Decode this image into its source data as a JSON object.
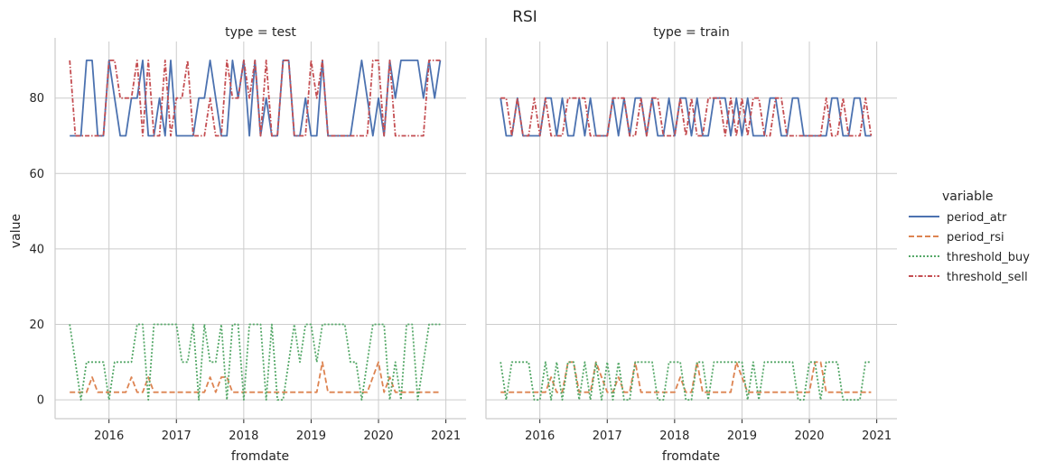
{
  "chart_data": {
    "type": "line",
    "title": "RSI",
    "xlabel": "fromdate",
    "ylabel": "value",
    "ylim": [
      -5,
      95
    ],
    "yticks": [
      0,
      20,
      40,
      60,
      80
    ],
    "xticks": [
      "2016",
      "2017",
      "2018",
      "2019",
      "2020",
      "2021"
    ],
    "grid": true,
    "legend": {
      "title": "variable",
      "position": "right",
      "entries": [
        "period_atr",
        "period_rsi",
        "threshold_buy",
        "threshold_sell"
      ]
    },
    "colors": {
      "period_atr": "#4c72b0",
      "period_rsi": "#dd8452",
      "threshold_buy": "#55a868",
      "threshold_sell": "#c44e52",
      "grid": "#cccccc",
      "axis": "#cccccc"
    },
    "styles": {
      "period_atr": "solid",
      "period_rsi": "dashed",
      "threshold_buy": "dotted",
      "threshold_sell": "dashdot"
    },
    "panels": [
      {
        "title": "type = test",
        "x": [
          "2015-06",
          "2015-07",
          "2015-08",
          "2015-09",
          "2015-10",
          "2015-11",
          "2015-12",
          "2016-01",
          "2016-02",
          "2016-03",
          "2016-04",
          "2016-05",
          "2016-06",
          "2016-07",
          "2016-08",
          "2016-09",
          "2016-10",
          "2016-11",
          "2016-12",
          "2017-01",
          "2017-02",
          "2017-03",
          "2017-04",
          "2017-05",
          "2017-06",
          "2017-07",
          "2017-08",
          "2017-09",
          "2017-10",
          "2017-11",
          "2017-12",
          "2018-01",
          "2018-02",
          "2018-03",
          "2018-04",
          "2018-05",
          "2018-06",
          "2018-07",
          "2018-08",
          "2018-09",
          "2018-10",
          "2018-11",
          "2018-12",
          "2019-01",
          "2019-02",
          "2019-03",
          "2019-04",
          "2019-05",
          "2019-06",
          "2019-07",
          "2019-08",
          "2019-09",
          "2019-10",
          "2019-11",
          "2019-12",
          "2020-01",
          "2020-02",
          "2020-03",
          "2020-04",
          "2020-05",
          "2020-06",
          "2020-07",
          "2020-08",
          "2020-09",
          "2020-10",
          "2020-11",
          "2020-12"
        ],
        "series": [
          {
            "name": "period_atr",
            "values": [
              70,
              70,
              70,
              90,
              90,
              70,
              70,
              90,
              80,
              70,
              70,
              80,
              80,
              90,
              70,
              70,
              80,
              70,
              90,
              70,
              70,
              70,
              70,
              80,
              80,
              90,
              80,
              70,
              70,
              90,
              80,
              90,
              70,
              90,
              70,
              80,
              70,
              70,
              90,
              90,
              70,
              70,
              80,
              70,
              70,
              90,
              70,
              70,
              70,
              70,
              70,
              80,
              90,
              80,
              70,
              80,
              70,
              90,
              80,
              90,
              90,
              90,
              90,
              80,
              90,
              80,
              90
            ]
          },
          {
            "name": "period_rsi",
            "values": [
              2,
              2,
              2,
              2,
              6,
              2,
              2,
              2,
              2,
              2,
              2,
              6,
              2,
              2,
              6,
              2,
              2,
              2,
              2,
              2,
              2,
              2,
              2,
              2,
              2,
              6,
              2,
              6,
              6,
              2,
              2,
              2,
              2,
              2,
              2,
              2,
              2,
              2,
              2,
              2,
              2,
              2,
              2,
              2,
              2,
              10,
              2,
              2,
              2,
              2,
              2,
              2,
              2,
              2,
              6,
              10,
              2,
              6,
              2,
              2,
              2,
              2,
              2,
              2,
              2,
              2,
              2
            ]
          },
          {
            "name": "threshold_buy",
            "values": [
              20,
              10,
              0,
              10,
              10,
              10,
              10,
              0,
              10,
              10,
              10,
              10,
              20,
              20,
              0,
              20,
              20,
              20,
              20,
              20,
              10,
              10,
              20,
              0,
              20,
              10,
              10,
              20,
              0,
              20,
              20,
              0,
              20,
              20,
              20,
              0,
              20,
              0,
              0,
              10,
              20,
              10,
              20,
              20,
              10,
              20,
              20,
              20,
              20,
              20,
              10,
              10,
              0,
              10,
              20,
              20,
              20,
              0,
              10,
              0,
              20,
              20,
              0,
              10,
              20,
              20,
              20
            ]
          },
          {
            "name": "threshold_sell",
            "values": [
              90,
              70,
              70,
              70,
              70,
              70,
              70,
              90,
              90,
              80,
              80,
              80,
              90,
              70,
              90,
              70,
              70,
              90,
              70,
              80,
              80,
              90,
              70,
              70,
              70,
              80,
              70,
              70,
              90,
              80,
              80,
              90,
              80,
              90,
              70,
              90,
              70,
              70,
              90,
              90,
              70,
              70,
              70,
              90,
              80,
              90,
              70,
              70,
              70,
              70,
              70,
              70,
              70,
              70,
              90,
              90,
              70,
              90,
              70,
              70,
              70,
              70,
              70,
              70,
              90,
              90,
              90
            ]
          }
        ]
      },
      {
        "title": "type = train",
        "x": [
          "2015-06",
          "2015-07",
          "2015-08",
          "2015-09",
          "2015-10",
          "2015-11",
          "2015-12",
          "2016-01",
          "2016-02",
          "2016-03",
          "2016-04",
          "2016-05",
          "2016-06",
          "2016-07",
          "2016-08",
          "2016-09",
          "2016-10",
          "2016-11",
          "2016-12",
          "2017-01",
          "2017-02",
          "2017-03",
          "2017-04",
          "2017-05",
          "2017-06",
          "2017-07",
          "2017-08",
          "2017-09",
          "2017-10",
          "2017-11",
          "2017-12",
          "2018-01",
          "2018-02",
          "2018-03",
          "2018-04",
          "2018-05",
          "2018-06",
          "2018-07",
          "2018-08",
          "2018-09",
          "2018-10",
          "2018-11",
          "2018-12",
          "2019-01",
          "2019-02",
          "2019-03",
          "2019-04",
          "2019-05",
          "2019-06",
          "2019-07",
          "2019-08",
          "2019-09",
          "2019-10",
          "2019-11",
          "2019-12",
          "2020-01",
          "2020-02",
          "2020-03",
          "2020-04",
          "2020-05",
          "2020-06",
          "2020-07",
          "2020-08",
          "2020-09",
          "2020-10",
          "2020-11",
          "2020-12"
        ],
        "series": [
          {
            "name": "period_atr",
            "values": [
              80,
              70,
              70,
              80,
              70,
              70,
              70,
              70,
              80,
              80,
              70,
              80,
              70,
              70,
              80,
              70,
              80,
              70,
              70,
              70,
              80,
              70,
              80,
              70,
              80,
              80,
              70,
              80,
              70,
              70,
              80,
              70,
              80,
              80,
              70,
              80,
              70,
              70,
              80,
              80,
              80,
              70,
              80,
              70,
              80,
              70,
              70,
              70,
              80,
              80,
              70,
              70,
              80,
              80,
              70,
              70,
              70,
              70,
              70,
              80,
              80,
              70,
              70,
              80,
              80,
              70,
              70
            ]
          },
          {
            "name": "period_rsi",
            "values": [
              2,
              2,
              2,
              2,
              2,
              2,
              2,
              2,
              2,
              6,
              2,
              2,
              10,
              10,
              2,
              2,
              2,
              10,
              6,
              2,
              2,
              6,
              2,
              2,
              10,
              2,
              2,
              2,
              2,
              2,
              2,
              2,
              6,
              2,
              2,
              10,
              2,
              2,
              2,
              2,
              2,
              2,
              10,
              6,
              2,
              2,
              2,
              2,
              2,
              2,
              2,
              2,
              2,
              2,
              2,
              2,
              10,
              10,
              2,
              2,
              2,
              2,
              2,
              2,
              2,
              2,
              2
            ]
          },
          {
            "name": "threshold_buy",
            "values": [
              10,
              0,
              10,
              10,
              10,
              10,
              0,
              0,
              10,
              0,
              10,
              0,
              10,
              10,
              0,
              10,
              0,
              10,
              0,
              10,
              0,
              10,
              0,
              0,
              10,
              10,
              10,
              10,
              0,
              0,
              10,
              10,
              10,
              0,
              0,
              10,
              10,
              0,
              10,
              10,
              10,
              10,
              10,
              10,
              0,
              10,
              0,
              10,
              10,
              10,
              10,
              10,
              10,
              0,
              0,
              10,
              10,
              0,
              10,
              10,
              10,
              0,
              0,
              0,
              0,
              10,
              10
            ]
          },
          {
            "name": "threshold_sell",
            "values": [
              80,
              80,
              70,
              80,
              70,
              70,
              80,
              70,
              80,
              70,
              70,
              70,
              80,
              80,
              80,
              80,
              70,
              70,
              70,
              70,
              80,
              80,
              80,
              70,
              70,
              80,
              70,
              80,
              80,
              70,
              70,
              70,
              80,
              70,
              80,
              70,
              70,
              80,
              80,
              80,
              70,
              80,
              70,
              80,
              70,
              80,
              80,
              70,
              70,
              80,
              80,
              70,
              70,
              70,
              70,
              70,
              70,
              70,
              80,
              70,
              70,
              80,
              70,
              70,
              70,
              80,
              70
            ]
          }
        ]
      }
    ]
  }
}
